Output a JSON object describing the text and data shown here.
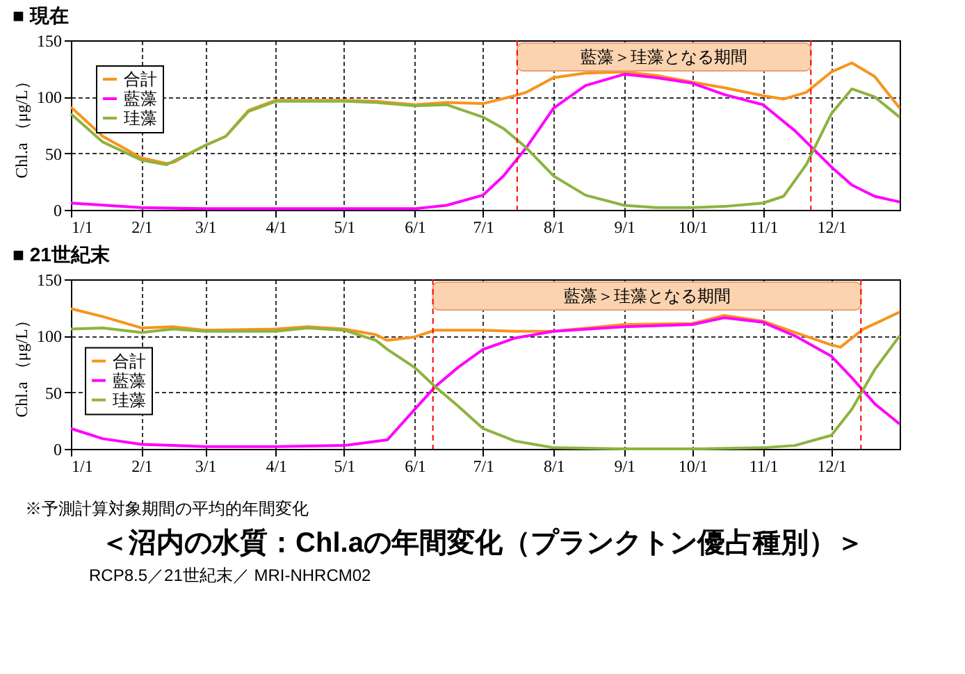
{
  "chart_data": [
    {
      "type": "line",
      "title": "■ 現在",
      "ylabel": "Chl.a （μg/L）",
      "xlim": [
        "--01-01",
        "--12-31"
      ],
      "ylim": [
        0,
        150
      ],
      "yticks": [
        0,
        50,
        100,
        150
      ],
      "xticks": [
        {
          "value": "--01-01",
          "label": "1/1"
        },
        {
          "value": "--02-01",
          "label": "2/1"
        },
        {
          "value": "--03-01",
          "label": "3/1"
        },
        {
          "value": "--04-01",
          "label": "4/1"
        },
        {
          "value": "--05-01",
          "label": "5/1"
        },
        {
          "value": "--06-01",
          "label": "6/1"
        },
        {
          "value": "--07-01",
          "label": "7/1"
        },
        {
          "value": "--08-01",
          "label": "8/1"
        },
        {
          "value": "--09-01",
          "label": "9/1"
        },
        {
          "value": "--10-01",
          "label": "10/1"
        },
        {
          "value": "--11-01",
          "label": "11/1"
        },
        {
          "value": "--12-01",
          "label": "12/1"
        }
      ],
      "grid": true,
      "legend": "top left",
      "line_style": "solid",
      "series": [
        {
          "name": "合計",
          "color": "#f7941d",
          "x": [
            "--01-01",
            "--01-15",
            "--02-01",
            "--02-12",
            "--02-15",
            "--03-01",
            "--03-10",
            "--03-20",
            "--04-01",
            "--04-15",
            "--05-01",
            "--05-15",
            "--06-01",
            "--06-15",
            "--07-01",
            "--07-15",
            "--07-20",
            "--08-01",
            "--08-15",
            "--09-01",
            "--09-15",
            "--10-01",
            "--10-15",
            "--11-01",
            "--11-10",
            "--11-20",
            "--12-01",
            "--12-10",
            "--12-20",
            "--12-31"
          ],
          "values": [
            91,
            65,
            46,
            41,
            42,
            57,
            65,
            88,
            97,
            97,
            97,
            96,
            93,
            95,
            94,
            101,
            104,
            117,
            121,
            122,
            119,
            113,
            108,
            101,
            98,
            104,
            122,
            130,
            118,
            90
          ]
        },
        {
          "name": "藍藻",
          "color": "#ff00ff",
          "x": [
            "--01-01",
            "--02-01",
            "--03-01",
            "--06-01",
            "--06-15",
            "--07-01",
            "--07-10",
            "--07-20",
            "--08-01",
            "--08-15",
            "--09-01",
            "--09-15",
            "--10-01",
            "--10-15",
            "--11-01",
            "--11-15",
            "--11-25",
            "--12-01",
            "--12-10",
            "--12-20",
            "--12-31"
          ],
          "values": [
            6,
            2,
            1,
            1,
            4,
            13,
            30,
            55,
            90,
            110,
            120,
            117,
            112,
            102,
            93,
            70,
            50,
            38,
            22,
            12,
            7
          ]
        },
        {
          "name": "珪藻",
          "color": "#8db33f",
          "x": [
            "--01-01",
            "--01-15",
            "--02-01",
            "--02-12",
            "--03-01",
            "--03-10",
            "--03-20",
            "--04-01",
            "--04-15",
            "--05-01",
            "--05-15",
            "--06-01",
            "--06-15",
            "--07-01",
            "--07-10",
            "--07-20",
            "--08-01",
            "--08-15",
            "--09-01",
            "--09-15",
            "--10-01",
            "--10-15",
            "--11-01",
            "--11-10",
            "--11-20",
            "--12-01",
            "--12-10",
            "--12-20",
            "--12-31"
          ],
          "values": [
            85,
            60,
            44,
            40,
            57,
            65,
            87,
            96,
            96,
            96,
            95,
            92,
            93,
            82,
            72,
            55,
            30,
            13,
            4,
            2,
            2,
            3,
            6,
            12,
            40,
            85,
            107,
            100,
            82
          ]
        }
      ],
      "ref_lines": [
        {
          "axis": "x",
          "value": "--07-16",
          "color": "#ff0000",
          "line_style": "dashed"
        },
        {
          "axis": "x",
          "value": "--11-22",
          "color": "#ff0000",
          "line_style": "dashed"
        }
      ],
      "bands": [
        {
          "axis": "x",
          "from": "--07-16",
          "to": "--11-22",
          "label": "藍藻＞珪藻となる期間",
          "color": "#fbd3b0"
        }
      ]
    },
    {
      "type": "line",
      "title": "■ 21世紀末",
      "ylabel": "Chl.a （μg/L）",
      "xlim": [
        "--01-01",
        "--12-31"
      ],
      "ylim": [
        0,
        150
      ],
      "yticks": [
        0,
        50,
        100,
        150
      ],
      "xticks": [
        {
          "value": "--01-01",
          "label": "1/1"
        },
        {
          "value": "--02-01",
          "label": "2/1"
        },
        {
          "value": "--03-01",
          "label": "3/1"
        },
        {
          "value": "--04-01",
          "label": "4/1"
        },
        {
          "value": "--05-01",
          "label": "5/1"
        },
        {
          "value": "--06-01",
          "label": "6/1"
        },
        {
          "value": "--07-01",
          "label": "7/1"
        },
        {
          "value": "--08-01",
          "label": "8/1"
        },
        {
          "value": "--09-01",
          "label": "9/1"
        },
        {
          "value": "--10-01",
          "label": "10/1"
        },
        {
          "value": "--11-01",
          "label": "11/1"
        },
        {
          "value": "--12-01",
          "label": "12/1"
        }
      ],
      "grid": true,
      "legend": "left",
      "line_style": "solid",
      "series": [
        {
          "name": "合計",
          "color": "#f7941d",
          "x": [
            "--01-01",
            "--01-15",
            "--02-01",
            "--02-15",
            "--03-01",
            "--04-01",
            "--04-15",
            "--05-01",
            "--05-15",
            "--05-20",
            "--06-01",
            "--06-10",
            "--07-01",
            "--07-15",
            "--08-01",
            "--09-01",
            "--10-01",
            "--10-15",
            "--11-01",
            "--11-15",
            "--12-01",
            "--12-05",
            "--12-15",
            "--12-31"
          ],
          "values": [
            124,
            117,
            107,
            108,
            105,
            106,
            108,
            106,
            101,
            96,
            99,
            105,
            105,
            104,
            104,
            110,
            111,
            118,
            113,
            103,
            92,
            90,
            106,
            121
          ]
        },
        {
          "name": "藍藻",
          "color": "#ff00ff",
          "x": [
            "--01-01",
            "--01-15",
            "--02-01",
            "--03-01",
            "--04-01",
            "--05-01",
            "--05-20",
            "--06-01",
            "--06-10",
            "--06-20",
            "--07-01",
            "--07-15",
            "--08-01",
            "--09-01",
            "--10-01",
            "--10-15",
            "--11-01",
            "--11-15",
            "--12-01",
            "--12-10",
            "--12-20",
            "--12-31"
          ],
          "values": [
            18,
            9,
            4,
            2,
            2,
            3,
            8,
            35,
            55,
            72,
            88,
            98,
            104,
            108,
            110,
            116,
            112,
            100,
            82,
            63,
            40,
            22
          ]
        },
        {
          "name": "珪藻",
          "color": "#8db33f",
          "x": [
            "--01-01",
            "--01-15",
            "--02-01",
            "--02-15",
            "--03-01",
            "--04-01",
            "--04-15",
            "--05-01",
            "--05-15",
            "--05-20",
            "--06-01",
            "--06-10",
            "--06-20",
            "--07-01",
            "--07-15",
            "--08-01",
            "--09-01",
            "--10-01",
            "--11-01",
            "--11-15",
            "--12-01",
            "--12-10",
            "--12-20",
            "--12-31"
          ],
          "values": [
            106,
            107,
            103,
            106,
            104,
            104,
            107,
            105,
            96,
            88,
            72,
            55,
            38,
            18,
            7,
            1,
            0,
            0,
            1,
            3,
            12,
            35,
            70,
            100
          ]
        }
      ],
      "ref_lines": [
        {
          "axis": "x",
          "value": "--06-09",
          "color": "#ff0000",
          "line_style": "dashed"
        },
        {
          "axis": "x",
          "value": "--12-14",
          "color": "#ff0000",
          "line_style": "dashed"
        }
      ],
      "bands": [
        {
          "axis": "x",
          "from": "--06-09",
          "to": "--12-14",
          "label": "藍藻＞珪藻となる期間",
          "color": "#fbd3b0"
        }
      ]
    },
    {
      "type": "other",
      "title": "＜沼内の水質：Chl.aの年間変化（プランクトン優占種別）＞",
      "annotations": [
        "※予測計算対象期間の平均的年間変化",
        "RCP8.5／21世紀末／ MRI-NHRCM02"
      ]
    }
  ]
}
